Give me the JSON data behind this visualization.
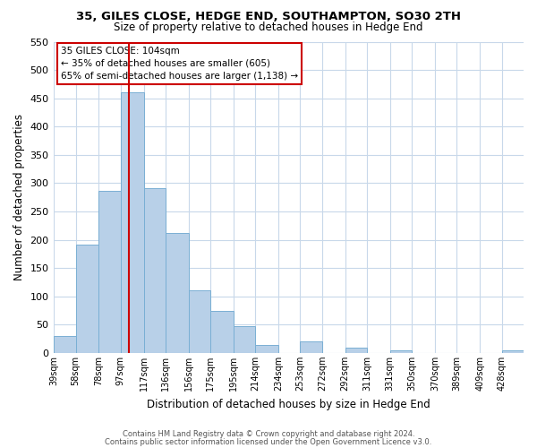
{
  "title": "35, GILES CLOSE, HEDGE END, SOUTHAMPTON, SO30 2TH",
  "subtitle": "Size of property relative to detached houses in Hedge End",
  "xlabel": "Distribution of detached houses by size in Hedge End",
  "ylabel": "Number of detached properties",
  "bar_color": "#b8d0e8",
  "bar_edge_color": "#7aafd4",
  "grid_color": "#c8d8ea",
  "property_line_color": "#cc0000",
  "annotation_box_color": "#cc0000",
  "property_size": 104,
  "categories": [
    "39sqm",
    "58sqm",
    "78sqm",
    "97sqm",
    "117sqm",
    "136sqm",
    "156sqm",
    "175sqm",
    "195sqm",
    "214sqm",
    "234sqm",
    "253sqm",
    "272sqm",
    "292sqm",
    "311sqm",
    "331sqm",
    "350sqm",
    "370sqm",
    "389sqm",
    "409sqm",
    "428sqm"
  ],
  "bin_edges": [
    39,
    58,
    78,
    97,
    117,
    136,
    156,
    175,
    195,
    214,
    234,
    253,
    272,
    292,
    311,
    331,
    350,
    370,
    389,
    409,
    428
  ],
  "bin_width": 19,
  "values": [
    30,
    192,
    287,
    460,
    291,
    212,
    110,
    74,
    47,
    14,
    0,
    21,
    0,
    9,
    0,
    4,
    0,
    0,
    0,
    0,
    5
  ],
  "ylim": [
    0,
    550
  ],
  "yticks": [
    0,
    50,
    100,
    150,
    200,
    250,
    300,
    350,
    400,
    450,
    500,
    550
  ],
  "annotation_line1": "35 GILES CLOSE: 104sqm",
  "annotation_line2": "← 35% of detached houses are smaller (605)",
  "annotation_line3": "65% of semi-detached houses are larger (1,138) →",
  "footer1": "Contains HM Land Registry data © Crown copyright and database right 2024.",
  "footer2": "Contains public sector information licensed under the Open Government Licence v3.0."
}
